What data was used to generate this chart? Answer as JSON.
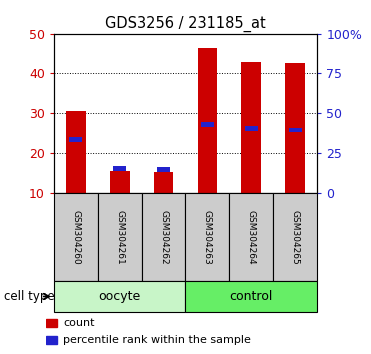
{
  "title": "GDS3256 / 231185_at",
  "samples": [
    "GSM304260",
    "GSM304261",
    "GSM304262",
    "GSM304263",
    "GSM304264",
    "GSM304265"
  ],
  "red_values": [
    30.5,
    15.5,
    15.2,
    46.5,
    43.0,
    42.5
  ],
  "blue_values": [
    23.5,
    16.2,
    15.8,
    27.2,
    26.2,
    25.8
  ],
  "ylim_left": [
    10,
    50
  ],
  "ylim_right": [
    0,
    100
  ],
  "yticks_left": [
    10,
    20,
    30,
    40,
    50
  ],
  "yticks_right": [
    0,
    25,
    50,
    75,
    100
  ],
  "ytick_labels_right": [
    "0",
    "25",
    "50",
    "75",
    "100%"
  ],
  "groups": [
    {
      "label": "oocyte",
      "indices": [
        0,
        1,
        2
      ],
      "color": "#c8f5c8"
    },
    {
      "label": "control",
      "indices": [
        3,
        4,
        5
      ],
      "color": "#66ee66"
    }
  ],
  "cell_type_label": "cell type",
  "legend_items": [
    {
      "label": "count",
      "color": "#cc0000"
    },
    {
      "label": "percentile rank within the sample",
      "color": "#2222cc"
    }
  ],
  "bar_color_red": "#cc0000",
  "bar_color_blue": "#2222cc",
  "bar_width": 0.45,
  "blue_bar_width": 0.3,
  "blue_bar_height": 1.2,
  "tick_color_left": "#cc0000",
  "tick_color_right": "#2222cc",
  "background_gray": "#cccccc",
  "n": 6
}
